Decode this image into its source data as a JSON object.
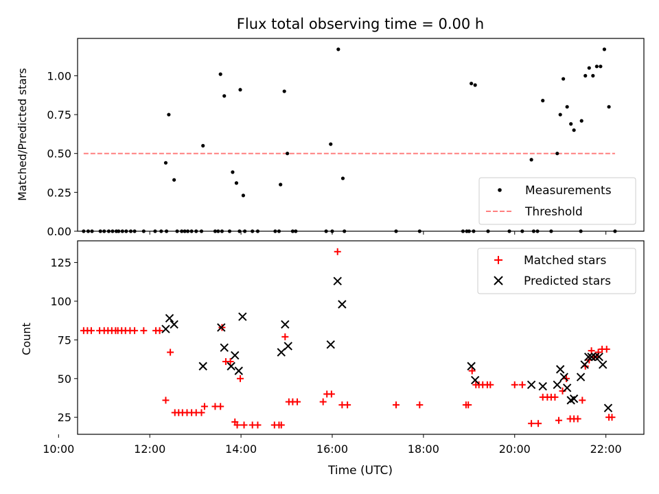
{
  "chart_data": [
    {
      "type": "scatter",
      "title": "Flux total observing time = 0.00 h",
      "xlabel": "",
      "ylabel": "Matched/Predicted stars",
      "xlim": [
        "10:25",
        "22:50"
      ],
      "ylim": [
        0,
        1.24
      ],
      "yticks": [
        0.0,
        0.25,
        0.5,
        0.75,
        1.0
      ],
      "ytick_labels": [
        "0.00",
        "0.25",
        "0.50",
        "0.75",
        "1.00"
      ],
      "legend_position": "lower-right",
      "series": [
        {
          "name": "Measurements",
          "color": "#000000",
          "marker": "dot",
          "points": [
            [
              "10:33",
              0
            ],
            [
              "10:39",
              0
            ],
            [
              "10:44",
              0
            ],
            [
              "10:55",
              0
            ],
            [
              "11:00",
              0
            ],
            [
              "11:06",
              0
            ],
            [
              "11:11",
              0
            ],
            [
              "11:16",
              0
            ],
            [
              "11:19",
              0
            ],
            [
              "11:24",
              0
            ],
            [
              "11:29",
              0
            ],
            [
              "11:35",
              0
            ],
            [
              "11:40",
              0
            ],
            [
              "11:52",
              0
            ],
            [
              "12:07",
              0
            ],
            [
              "12:15",
              0
            ],
            [
              "12:22",
              0
            ],
            [
              "12:36",
              0
            ],
            [
              "12:42",
              0
            ],
            [
              "12:46",
              0
            ],
            [
              "12:50",
              0
            ],
            [
              "12:55",
              0
            ],
            [
              "13:01",
              0
            ],
            [
              "13:08",
              0
            ],
            [
              "13:26",
              0
            ],
            [
              "13:35",
              0
            ],
            [
              "13:45",
              0
            ],
            [
              "13:58",
              0
            ],
            [
              "14:05",
              0
            ],
            [
              "14:15",
              0
            ],
            [
              "14:22",
              0
            ],
            [
              "14:45",
              0
            ],
            [
              "14:50",
              0
            ],
            [
              "15:08",
              0
            ],
            [
              "15:12",
              0
            ],
            [
              "15:52",
              0
            ],
            [
              "16:00",
              0
            ],
            [
              "16:16",
              0
            ],
            [
              "17:24",
              0
            ],
            [
              "17:55",
              0
            ],
            [
              "18:52",
              0
            ],
            [
              "18:57",
              0
            ],
            [
              "19:00",
              0
            ],
            [
              "19:06",
              0
            ],
            [
              "19:25",
              0
            ],
            [
              "19:53",
              0
            ],
            [
              "20:10",
              0
            ],
            [
              "20:25",
              0
            ],
            [
              "20:30",
              0
            ],
            [
              "20:48",
              0
            ],
            [
              "21:27",
              0
            ],
            [
              "22:12",
              0
            ],
            [
              "12:21",
              0.44
            ],
            [
              "12:25",
              0.75
            ],
            [
              "12:32",
              0.33
            ],
            [
              "13:10",
              0.55
            ],
            [
              "13:30",
              0.0
            ],
            [
              "13:33",
              1.01
            ],
            [
              "13:38",
              0.87
            ],
            [
              "13:49",
              0.38
            ],
            [
              "13:54",
              0.31
            ],
            [
              "13:59",
              0.91
            ],
            [
              "14:03",
              0.23
            ],
            [
              "14:52",
              0.3
            ],
            [
              "14:57",
              0.9
            ],
            [
              "15:01",
              0.5
            ],
            [
              "15:58",
              0.56
            ],
            [
              "16:08",
              1.17
            ],
            [
              "16:14",
              0.34
            ],
            [
              "19:03",
              0.95
            ],
            [
              "19:08",
              0.94
            ],
            [
              "20:22",
              0.46
            ],
            [
              "20:37",
              0.84
            ],
            [
              "20:56",
              0.5
            ],
            [
              "21:00",
              0.75
            ],
            [
              "21:04",
              0.98
            ],
            [
              "21:09",
              0.8
            ],
            [
              "21:14",
              0.69
            ],
            [
              "21:18",
              0.65
            ],
            [
              "21:28",
              0.71
            ],
            [
              "21:33",
              1.0
            ],
            [
              "21:38",
              1.05
            ],
            [
              "21:43",
              1.0
            ],
            [
              "21:48",
              1.06
            ],
            [
              "21:53",
              1.06
            ],
            [
              "21:58",
              1.17
            ],
            [
              "22:04",
              0.8
            ]
          ]
        },
        {
          "name": "Threshold",
          "color": "#ff7f7f",
          "line_style": "dashed",
          "points": [
            [
              "10:33",
              0.5
            ],
            [
              "22:12",
              0.5
            ]
          ]
        }
      ]
    },
    {
      "type": "scatter",
      "title": "",
      "xlabel": "Time (UTC)",
      "ylabel": "Count",
      "xlim": [
        "10:25",
        "22:50"
      ],
      "ylim": [
        14,
        139
      ],
      "yticks": [
        25,
        50,
        75,
        100,
        125
      ],
      "ytick_labels": [
        "25",
        "50",
        "75",
        "100",
        "125"
      ],
      "xticks": [
        "10:00",
        "12:00",
        "14:00",
        "16:00",
        "18:00",
        "20:00",
        "22:00"
      ],
      "legend_position": "upper-right",
      "series": [
        {
          "name": "Matched stars",
          "color": "#ff0000",
          "marker": "plus",
          "points": [
            [
              "10:33",
              81
            ],
            [
              "10:38",
              81
            ],
            [
              "10:43",
              81
            ],
            [
              "10:54",
              81
            ],
            [
              "11:00",
              81
            ],
            [
              "11:05",
              81
            ],
            [
              "11:10",
              81
            ],
            [
              "11:15",
              81
            ],
            [
              "11:18",
              81
            ],
            [
              "11:23",
              81
            ],
            [
              "11:28",
              81
            ],
            [
              "11:34",
              81
            ],
            [
              "11:40",
              81
            ],
            [
              "11:52",
              81
            ],
            [
              "12:08",
              81
            ],
            [
              "12:13",
              81
            ],
            [
              "12:21",
              36
            ],
            [
              "12:27",
              67
            ],
            [
              "12:33",
              28
            ],
            [
              "12:38",
              28
            ],
            [
              "12:43",
              28
            ],
            [
              "12:49",
              28
            ],
            [
              "12:55",
              28
            ],
            [
              "13:01",
              28
            ],
            [
              "13:08",
              28
            ],
            [
              "13:12",
              32
            ],
            [
              "13:26",
              32
            ],
            [
              "13:33",
              32
            ],
            [
              "13:35",
              83
            ],
            [
              "13:40",
              61
            ],
            [
              "13:46",
              61
            ],
            [
              "13:52",
              22
            ],
            [
              "13:55",
              20
            ],
            [
              "13:59",
              50
            ],
            [
              "14:04",
              20
            ],
            [
              "14:15",
              20
            ],
            [
              "14:22",
              20
            ],
            [
              "14:44",
              20
            ],
            [
              "14:50",
              20
            ],
            [
              "14:53",
              20
            ],
            [
              "14:58",
              77
            ],
            [
              "15:03",
              35
            ],
            [
              "15:08",
              35
            ],
            [
              "15:14",
              35
            ],
            [
              "15:48",
              35
            ],
            [
              "15:53",
              40
            ],
            [
              "15:59",
              40
            ],
            [
              "16:07",
              132
            ],
            [
              "16:13",
              33
            ],
            [
              "16:20",
              33
            ],
            [
              "17:24",
              33
            ],
            [
              "17:55",
              33
            ],
            [
              "18:56",
              33
            ],
            [
              "18:59",
              33
            ],
            [
              "19:04",
              55
            ],
            [
              "19:09",
              46
            ],
            [
              "19:13",
              46
            ],
            [
              "19:18",
              46
            ],
            [
              "19:24",
              46
            ],
            [
              "19:28",
              46
            ],
            [
              "20:00",
              46
            ],
            [
              "20:10",
              46
            ],
            [
              "20:22",
              21
            ],
            [
              "20:31",
              21
            ],
            [
              "20:37",
              38
            ],
            [
              "20:43",
              38
            ],
            [
              "20:48",
              38
            ],
            [
              "20:53",
              38
            ],
            [
              "20:58",
              23
            ],
            [
              "21:03",
              42
            ],
            [
              "21:08",
              50
            ],
            [
              "21:13",
              24
            ],
            [
              "21:18",
              24
            ],
            [
              "21:23",
              24
            ],
            [
              "21:29",
              36
            ],
            [
              "21:33",
              58
            ],
            [
              "21:38",
              62
            ],
            [
              "21:41",
              68
            ],
            [
              "21:45",
              64
            ],
            [
              "21:50",
              67
            ],
            [
              "21:55",
              69
            ],
            [
              "22:01",
              69
            ],
            [
              "22:04",
              25
            ],
            [
              "22:08",
              25
            ]
          ]
        },
        {
          "name": "Predicted stars",
          "color": "#000000",
          "marker": "x",
          "points": [
            [
              "12:21",
              82
            ],
            [
              "12:26",
              89
            ],
            [
              "12:32",
              85
            ],
            [
              "13:10",
              58
            ],
            [
              "13:34",
              83
            ],
            [
              "13:38",
              70
            ],
            [
              "13:47",
              58
            ],
            [
              "13:52",
              65
            ],
            [
              "13:57",
              55
            ],
            [
              "14:02",
              90
            ],
            [
              "14:53",
              67
            ],
            [
              "14:58",
              85
            ],
            [
              "15:02",
              71
            ],
            [
              "15:58",
              72
            ],
            [
              "16:07",
              113
            ],
            [
              "16:13",
              98
            ],
            [
              "19:03",
              58
            ],
            [
              "19:08",
              49
            ],
            [
              "20:22",
              46
            ],
            [
              "20:37",
              45
            ],
            [
              "20:56",
              46
            ],
            [
              "21:00",
              56
            ],
            [
              "21:05",
              51
            ],
            [
              "21:09",
              44
            ],
            [
              "21:14",
              36
            ],
            [
              "21:18",
              37
            ],
            [
              "21:27",
              51
            ],
            [
              "21:32",
              59
            ],
            [
              "21:37",
              64
            ],
            [
              "21:41",
              64
            ],
            [
              "21:46",
              64
            ],
            [
              "21:51",
              64
            ],
            [
              "21:56",
              59
            ],
            [
              "22:03",
              31
            ]
          ]
        }
      ]
    }
  ],
  "legend_top": [
    {
      "label": "Measurements"
    },
    {
      "label": "Threshold"
    }
  ],
  "legend_bottom": [
    {
      "label": "Matched stars"
    },
    {
      "label": "Predicted stars"
    }
  ]
}
